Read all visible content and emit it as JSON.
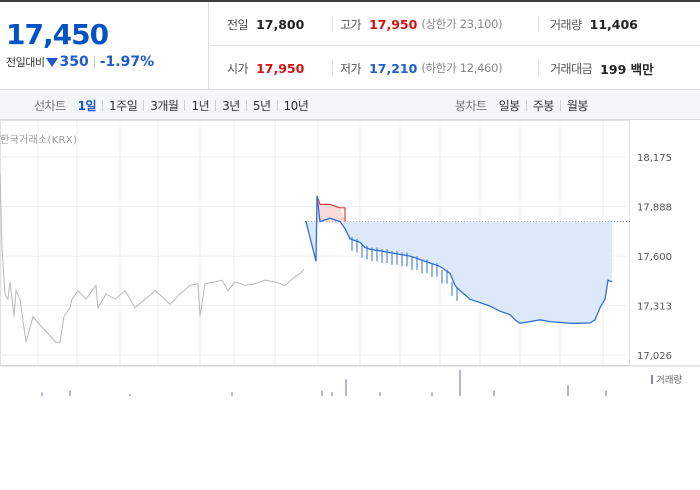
{
  "quote": {
    "price": "17,450",
    "change_label": "전일대비",
    "change_value": "350",
    "change_percent": "-1.97%",
    "direction": "down",
    "row1": {
      "prev_close_label": "전일",
      "prev_close": "17,800",
      "high_label": "고가",
      "high": "17,950",
      "upper_limit": "(상한가 23,100)",
      "volume_label": "거래량",
      "volume": "11,406"
    },
    "row2": {
      "open_label": "시가",
      "open": "17,950",
      "low_label": "저가",
      "low": "17,210",
      "lower_limit": "(하한가 12,460)",
      "amount_label": "거래대금",
      "amount": "199 백만"
    }
  },
  "tabs": {
    "line_title": "선차트",
    "line_periods": [
      "1일",
      "1주일",
      "3개월",
      "1년",
      "3년",
      "5년",
      "10년"
    ],
    "active_period": "1일",
    "candle_title": "봉차트",
    "candle_periods": [
      "일봉",
      "주봉",
      "월봉"
    ]
  },
  "chart": {
    "source": "한국거래소(KRX)",
    "volume_legend": "거래량",
    "colors": {
      "up": "#e23a3a",
      "down": "#2f6fd6",
      "prev": "#b9b9b9",
      "fill_down": "#dce9fb",
      "fill_up": "#fbdada",
      "volume": "#8a7dc9"
    }
  },
  "chart_data": {
    "type": "line",
    "y_ticks": [
      18175,
      17888,
      17600,
      17313,
      17026
    ],
    "y_tick_labels": [
      "18,175",
      "17,888",
      "17,600",
      "17,313",
      "17,026"
    ],
    "ylim": [
      17026,
      18175
    ],
    "reference_line": 17800,
    "previous_day_series": {
      "x": [
        0,
        2,
        5,
        8,
        10,
        14,
        16,
        20,
        26,
        33,
        40,
        48,
        56,
        60,
        64,
        70,
        72,
        78,
        86,
        96,
        98,
        106,
        115,
        125,
        135,
        145,
        155,
        163,
        170,
        180,
        190,
        198,
        200,
        205,
        215,
        222,
        228,
        235,
        245,
        255,
        265,
        275,
        285,
        295,
        300,
        304
      ],
      "values": [
        18080,
        17650,
        17380,
        17350,
        17450,
        17250,
        17400,
        17350,
        17100,
        17250,
        17200,
        17150,
        17100,
        17100,
        17250,
        17300,
        17350,
        17400,
        17350,
        17430,
        17300,
        17380,
        17350,
        17400,
        17300,
        17350,
        17400,
        17360,
        17320,
        17380,
        17430,
        17440,
        17250,
        17440,
        17450,
        17460,
        17400,
        17450,
        17430,
        17440,
        17460,
        17450,
        17430,
        17480,
        17500,
        17520
      ]
    },
    "today_series": {
      "x": [
        305,
        306,
        316,
        317,
        320,
        330,
        340,
        345,
        350,
        355,
        360,
        365,
        370,
        380,
        390,
        400,
        410,
        420,
        430,
        440,
        450,
        455,
        460,
        470,
        480,
        490,
        500,
        510,
        515,
        520,
        530,
        540,
        550,
        560,
        570,
        580,
        590,
        595,
        600,
        605,
        608,
        612
      ],
      "values": [
        17800,
        17800,
        17570,
        17950,
        17800,
        17820,
        17800,
        17760,
        17700,
        17690,
        17680,
        17650,
        17640,
        17630,
        17620,
        17610,
        17600,
        17580,
        17560,
        17540,
        17500,
        17430,
        17400,
        17350,
        17330,
        17310,
        17280,
        17260,
        17230,
        17210,
        17220,
        17230,
        17220,
        17215,
        17210,
        17210,
        17212,
        17230,
        17300,
        17350,
        17460,
        17450
      ]
    },
    "volume_bars": {
      "x": [
        42,
        70,
        130,
        232,
        322,
        332,
        346,
        380,
        432,
        460,
        494,
        568,
        606
      ],
      "values": [
        2,
        3,
        1,
        2,
        3,
        2,
        9,
        2,
        2,
        14,
        3,
        6,
        3
      ]
    }
  }
}
